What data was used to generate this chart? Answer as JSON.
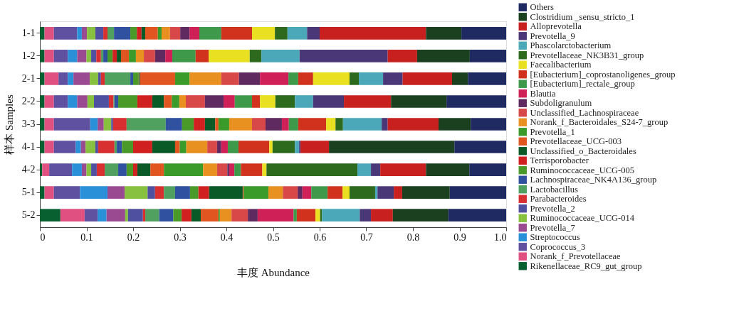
{
  "chart_data": {
    "type": "bar",
    "orientation": "horizontal",
    "stacked": true,
    "xlabel": "丰度  Abundance",
    "ylabel": "样本  Samples",
    "categories": [
      "1-1",
      "1-2",
      "2-1",
      "2-2",
      "3-3",
      "4-1",
      "4-2",
      "5-1",
      "5-2"
    ],
    "xlim": [
      0,
      1
    ],
    "xticks": [
      0,
      0.1,
      0.2,
      0.3,
      0.4,
      0.5,
      0.6,
      0.7,
      0.8,
      0.9,
      {
        "value": 1,
        "label": "1.0"
      }
    ],
    "grid": false,
    "legend": "right",
    "series": [
      {
        "name": "Rikenellaceae_RC9_gut_group",
        "color": "#086030",
        "values": [
          0.01,
          0.01,
          0.01,
          0.01,
          0.01,
          0.01,
          0.005,
          0.01,
          0.044
        ]
      },
      {
        "name": "Norank_f_Prevotellaceae",
        "color": "#e05080",
        "values": [
          0.02,
          0.02,
          0.03,
          0.02,
          0.02,
          0.02,
          0.015,
          0.02,
          0.052
        ]
      },
      {
        "name": "Coprococcus_3",
        "color": "#6050a0",
        "values": [
          0.05,
          0.03,
          0.02,
          0.03,
          0.078,
          0.047,
          0.049,
          0.056,
          0.028
        ]
      },
      {
        "name": "Streptococcus",
        "color": "#2a90d8",
        "values": [
          0.01,
          0.02,
          0.012,
          0.02,
          0.016,
          0.011,
          0.021,
          0.059,
          0.019
        ]
      },
      {
        "name": "Prevotella_7",
        "color": "#9a4a90",
        "values": [
          0.011,
          0.02,
          0.035,
          0.022,
          0.013,
          0.01,
          0.01,
          0.037,
          0.04
        ]
      },
      {
        "name": "Ruminococcaceae_UCG-014",
        "color": "#88c040",
        "values": [
          0.018,
          0.01,
          0.018,
          0.014,
          0.016,
          0.021,
          0.01,
          0.049,
          0.006
        ]
      },
      {
        "name": "Prevotella_2",
        "color": "#5050a0",
        "values": [
          0.017,
          0.011,
          0.006,
          0.032,
          0.004,
          0.006,
          0.012,
          0.016,
          0.032
        ]
      },
      {
        "name": "Parabacteroides",
        "color": "#d83030",
        "values": [
          0.009,
          0.01,
          0.008,
          0.01,
          0.029,
          0.035,
          0.017,
          0.019,
          0.005
        ]
      },
      {
        "name": "Lactobacillus",
        "color": "#50a060",
        "values": [
          0.014,
          0.005,
          0.055,
          0.002,
          0.084,
          0.005,
          0.029,
          0.024,
          0.03
        ]
      },
      {
        "name": "Lachnospiraceae_NK4A136_group",
        "color": "#3050a0",
        "values": [
          0.035,
          0.009,
          0.006,
          0.008,
          0.035,
          0.011,
          0.018,
          0.032,
          0.03
        ]
      },
      {
        "name": "Ruminococcaceae_UCG-005",
        "color": "#4a9a2a",
        "values": [
          0.014,
          0.011,
          0.012,
          0.041,
          0.025,
          0.024,
          0.014,
          0.018,
          0.018
        ]
      },
      {
        "name": "Terrisporobacter",
        "color": "#d02020",
        "values": [
          0.01,
          0.009,
          0.001,
          0.032,
          0.024,
          0.041,
          0.009,
          0.023,
          0.021
        ]
      },
      {
        "name": "Unclassified_o_Bacteroidales",
        "color": "#0a5a28",
        "values": [
          0.008,
          0.009,
          0.002,
          0.025,
          0.022,
          0.049,
          0.028,
          0.072,
          0.02
        ]
      },
      {
        "name": "Prevotellaceae_UCG-003",
        "color": "#e05520",
        "values": [
          0.027,
          0.017,
          0.075,
          0.017,
          0.007,
          0.01,
          0.029,
          0.002,
          0.038
        ]
      },
      {
        "name": "Prevotella_1",
        "color": "#3a9a2a",
        "values": [
          0.008,
          0.015,
          0.031,
          0.016,
          0.023,
          0.014,
          0.084,
          0.053,
          0.003
        ]
      },
      {
        "name": "Norank_f_Bacteroidales_S24-7_group",
        "color": "#e89020",
        "values": [
          0.018,
          0.017,
          0.068,
          0.014,
          0.049,
          0.045,
          0.03,
          0.031,
          0.025
        ]
      },
      {
        "name": "Unclassified_Lachnospiraceae",
        "color": "#d84848",
        "values": [
          0.022,
          0.024,
          0.038,
          0.041,
          0.029,
          0.021,
          0.022,
          0.032,
          0.035
        ]
      },
      {
        "name": "Subdoligranulum",
        "color": "#5e2a60",
        "values": [
          0.02,
          0.022,
          0.045,
          0.04,
          0.035,
          0.009,
          0.004,
          0.01,
          0.021
        ]
      },
      {
        "name": "Blautia",
        "color": "#d02058",
        "values": [
          0.021,
          0.015,
          0.061,
          0.024,
          0.015,
          0.014,
          0.011,
          0.019,
          0.077
        ]
      },
      {
        "name": "[Eubacterium]_rectale_group",
        "color": "#3e9a4a",
        "values": [
          0.047,
          0.05,
          0.021,
          0.037,
          0.02,
          0.023,
          0.014,
          0.035,
          0.007
        ]
      },
      {
        "name": "[Eubacterium]_coprostanoligenes_group",
        "color": "#d0321e",
        "values": [
          0.066,
          0.028,
          0.032,
          0.017,
          0.06,
          0.066,
          0.046,
          0.032,
          0.04
        ]
      },
      {
        "name": "Faecalibacterium",
        "color": "#e8e020",
        "values": [
          0.049,
          0.088,
          0.078,
          0.033,
          0.02,
          0.007,
          0.009,
          0.015,
          0.01
        ]
      },
      {
        "name": "Prevotellaceae_NK3B31_group",
        "color": "#2d6a1e",
        "values": [
          0.027,
          0.025,
          0.02,
          0.042,
          0.016,
          0.048,
          0.195,
          0.055,
          0.004
        ]
      },
      {
        "name": "Phascolarctobacterium",
        "color": "#4ba8b8",
        "values": [
          0.042,
          0.082,
          0.052,
          0.039,
          0.083,
          0.009,
          0.029,
          0.005,
          0.081
        ]
      },
      {
        "name": "Prevotella_9",
        "color": "#4a3778",
        "values": [
          0.027,
          0.189,
          0.042,
          0.066,
          0.013,
          0.003,
          0.02,
          0.035,
          0.024
        ]
      },
      {
        "name": "Alloprevotella",
        "color": "#c8201e",
        "values": [
          0.228,
          0.063,
          0.106,
          0.101,
          0.109,
          0.061,
          0.098,
          0.018,
          0.047
        ]
      },
      {
        "name": "Clostridium _sensu_stricto_1",
        "color": "#1a4020",
        "values": [
          0.076,
          0.113,
          0.034,
          0.119,
          0.069,
          0.269,
          0.093,
          0.102,
          0.119
        ]
      },
      {
        "name": "Others",
        "color": "#1f2a63",
        "values": [
          0.096,
          0.078,
          0.082,
          0.128,
          0.076,
          0.111,
          0.079,
          0.121,
          0.124
        ]
      }
    ]
  }
}
